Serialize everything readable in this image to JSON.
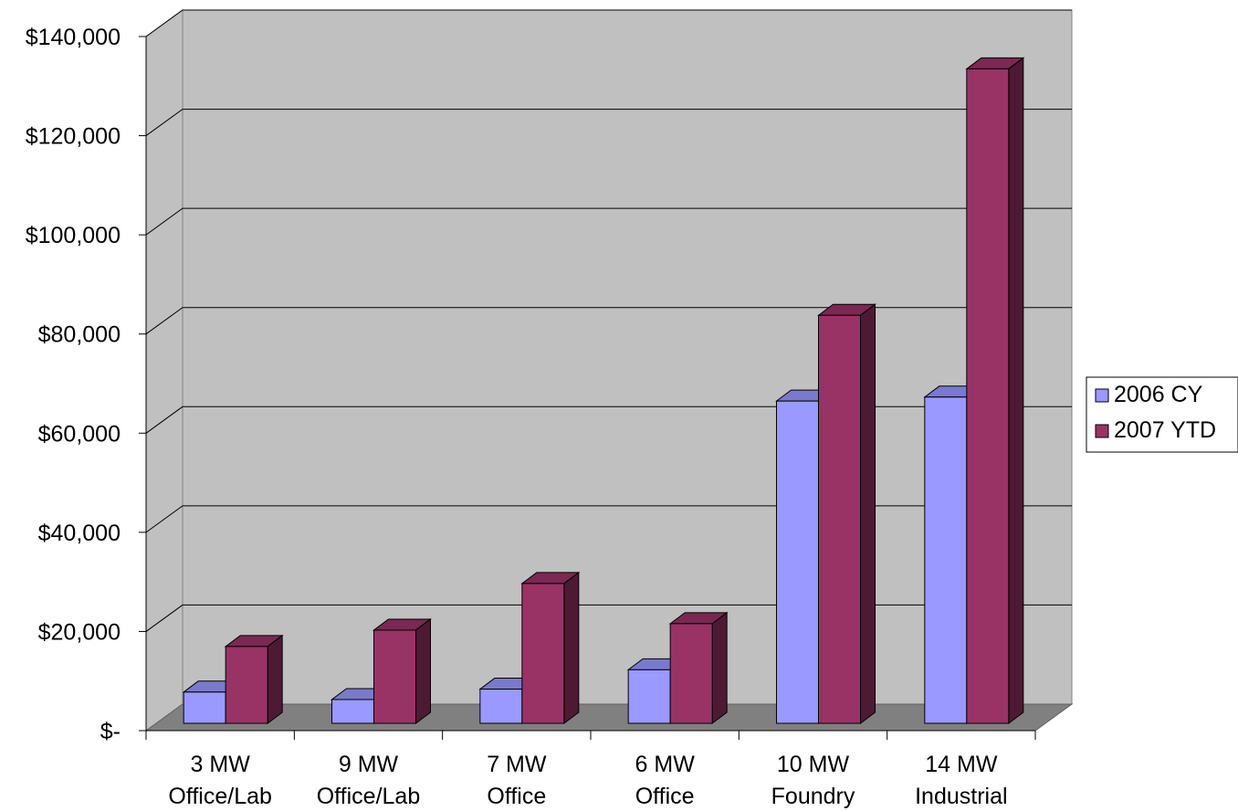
{
  "chart_data": {
    "type": "bar",
    "style": "3d-clustered-column",
    "categories": [
      [
        "3 MW",
        "Office/Lab"
      ],
      [
        "9 MW",
        "Office/Lab"
      ],
      [
        "7 MW",
        "Office"
      ],
      [
        "6 MW",
        "Office"
      ],
      [
        "10 MW",
        "Foundry"
      ],
      [
        "14 MW",
        "Industrial"
      ]
    ],
    "series": [
      {
        "name": "2006 CY",
        "values": [
          6300,
          4800,
          6900,
          10800,
          65000,
          65800
        ],
        "color": "#9999FF"
      },
      {
        "name": "2007 YTD",
        "values": [
          15500,
          18800,
          28200,
          20100,
          82300,
          132000
        ],
        "color": "#993366"
      }
    ],
    "ylim": [
      0,
      140000
    ],
    "yticks": [
      0,
      20000,
      40000,
      60000,
      80000,
      100000,
      120000,
      140000
    ],
    "ytick_labels": [
      "$-",
      "$20,000",
      "$40,000",
      "$60,000",
      "$80,000",
      "$100,000",
      "$120,000",
      "$140,000"
    ],
    "grid": true,
    "legend_position": "right",
    "wall_color": "#C0C0C0",
    "floor_color": "#808080"
  }
}
